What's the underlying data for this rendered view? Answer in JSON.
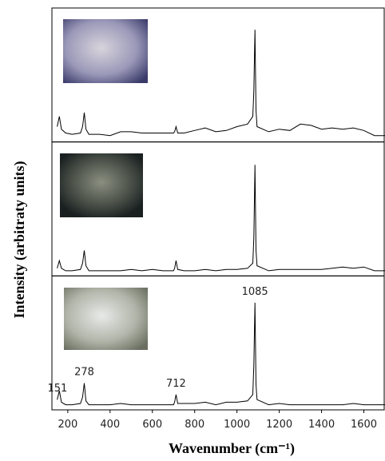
{
  "chart_data": {
    "type": "line",
    "xlabel": "Wavenumber (cm⁻¹)",
    "ylabel": "Intensity (arbitraty units)",
    "x": [
      150,
      160,
      170,
      190,
      220,
      260,
      270,
      278,
      286,
      300,
      350,
      400,
      450,
      500,
      550,
      600,
      650,
      700,
      705,
      712,
      720,
      750,
      800,
      850,
      900,
      950,
      1000,
      1050,
      1075,
      1080,
      1085,
      1090,
      1095,
      1150,
      1200,
      1250,
      1300,
      1350,
      1400,
      1450,
      1500,
      1550,
      1600,
      1650,
      1700
    ],
    "series": [
      {
        "color": "#000000",
        "values": [
          12,
          20,
          10,
          7,
          6,
          7,
          12,
          23,
          10,
          6,
          6,
          5,
          8,
          8,
          7,
          7,
          7,
          7,
          8,
          12,
          7,
          7,
          9,
          11,
          8,
          9,
          12,
          14,
          20,
          40,
          88,
          25,
          12,
          8,
          10,
          9,
          14,
          13,
          10,
          11,
          10,
          11,
          9,
          5,
          5
        ]
      },
      {
        "color": "#000000",
        "values": [
          6,
          12,
          6,
          4,
          4,
          5,
          10,
          20,
          8,
          4,
          4,
          4,
          4,
          5,
          4,
          5,
          4,
          4,
          6,
          12,
          5,
          4,
          4,
          5,
          4,
          5,
          5,
          6,
          10,
          30,
          87,
          20,
          8,
          4,
          5,
          5,
          5,
          5,
          5,
          6,
          7,
          6,
          7,
          4,
          4
        ]
      },
      {
        "color": "#000000",
        "values": [
          8,
          15,
          6,
          4,
          4,
          5,
          10,
          21,
          7,
          4,
          4,
          4,
          5,
          4,
          4,
          4,
          4,
          4,
          6,
          12,
          5,
          5,
          5,
          6,
          4,
          6,
          6,
          7,
          12,
          35,
          84,
          20,
          8,
          4,
          5,
          4,
          4,
          4,
          4,
          4,
          4,
          5,
          4,
          4,
          4
        ]
      }
    ],
    "peaks": [
      151,
      278,
      712,
      1085
    ],
    "xlim": [
      125,
      1700
    ],
    "xticks": [
      200,
      400,
      600,
      800,
      1000,
      1200,
      1400,
      1600
    ],
    "ylim": [
      0,
      100
    ]
  }
}
